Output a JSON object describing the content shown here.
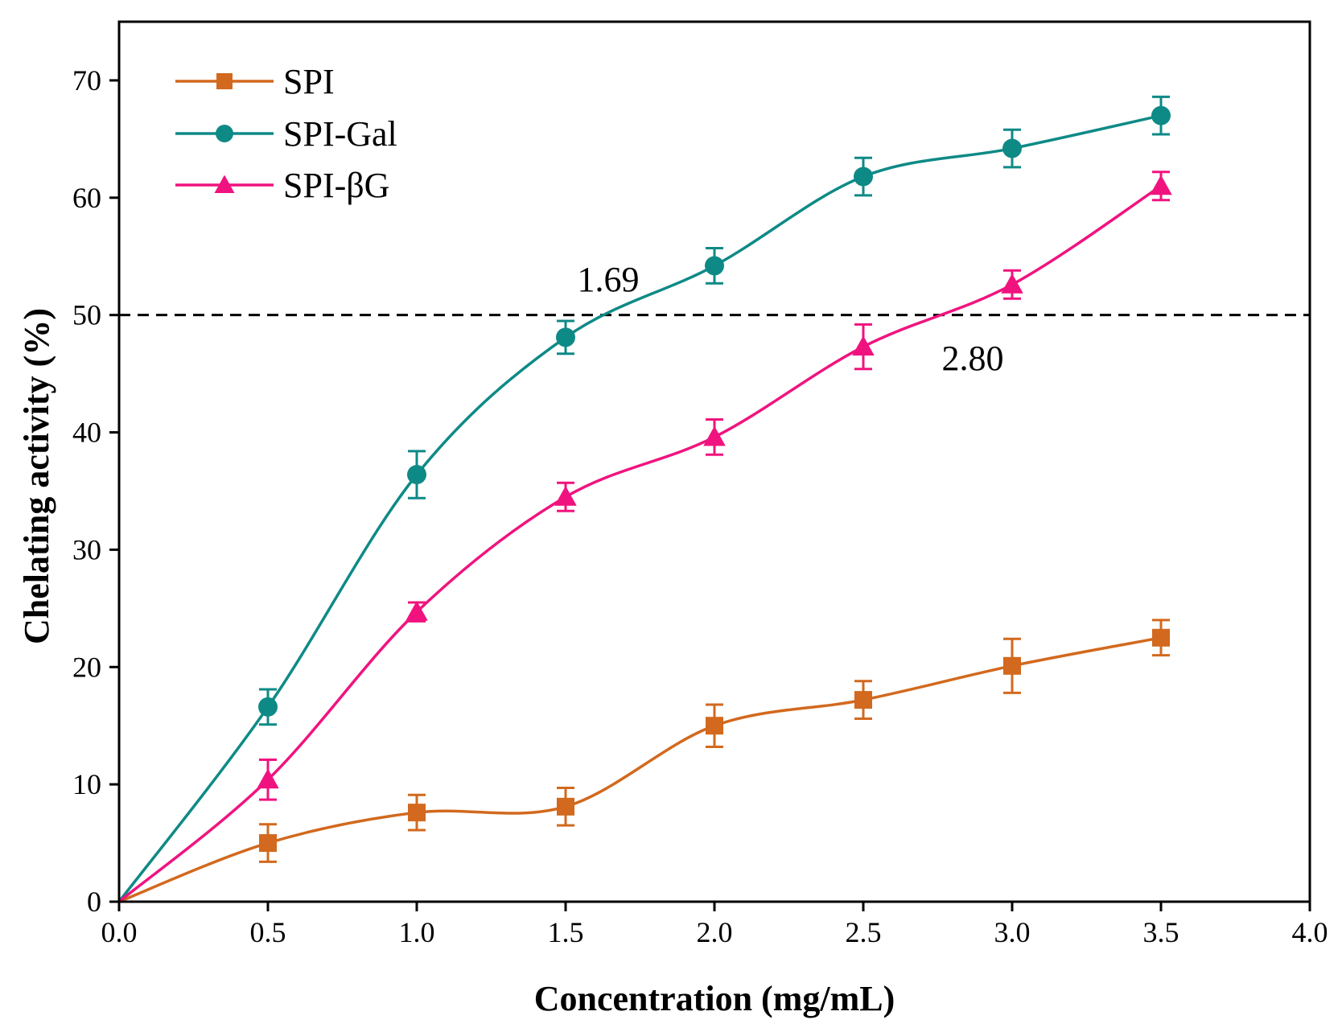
{
  "chart_data": {
    "type": "line",
    "title": "",
    "xlabel": "Concentration (mg/mL)",
    "ylabel": "Chelating activity (%)",
    "xlim": [
      0.0,
      4.0
    ],
    "ylim": [
      0,
      75
    ],
    "xticks": [
      0.0,
      0.5,
      1.0,
      1.5,
      2.0,
      2.5,
      3.0,
      3.5,
      4.0
    ],
    "xtick_labels": [
      "0.0",
      "0.5",
      "1.0",
      "1.5",
      "2.0",
      "2.5",
      "3.0",
      "3.5",
      "4.0"
    ],
    "yticks": [
      0,
      10,
      20,
      30,
      40,
      50,
      60,
      70
    ],
    "ytick_labels": [
      "0",
      "10",
      "20",
      "30",
      "40",
      "50",
      "60",
      "70"
    ],
    "grid": false,
    "legend_position": "top-left",
    "reference_line": {
      "y": 50,
      "style": "dashed"
    },
    "series": [
      {
        "name": "SPI",
        "color": "#d2691e",
        "marker": "square",
        "x": [
          0,
          0.5,
          1.0,
          1.5,
          2.0,
          2.5,
          3.0,
          3.5
        ],
        "values": [
          0,
          5.0,
          7.6,
          8.1,
          15.0,
          17.2,
          20.1,
          22.5
        ],
        "errors": [
          0,
          1.6,
          1.5,
          1.6,
          1.8,
          1.6,
          2.3,
          1.5
        ],
        "show_marker": [
          false,
          true,
          true,
          true,
          true,
          true,
          true,
          true
        ]
      },
      {
        "name": "SPI-Gal",
        "color": "#0e8a86",
        "marker": "circle",
        "x": [
          0,
          0.5,
          1.0,
          1.5,
          2.0,
          2.5,
          3.0,
          3.5
        ],
        "values": [
          0,
          16.6,
          36.4,
          48.1,
          54.2,
          61.8,
          64.2,
          67.0
        ],
        "errors": [
          0,
          1.5,
          2.0,
          1.4,
          1.5,
          1.6,
          1.6,
          1.6
        ],
        "show_marker": [
          false,
          true,
          true,
          true,
          true,
          true,
          true,
          true
        ]
      },
      {
        "name": "SPI-βG",
        "color": "#f0137f",
        "marker": "triangle",
        "x": [
          0,
          0.5,
          1.0,
          1.5,
          2.0,
          2.5,
          3.0,
          3.5
        ],
        "values": [
          0,
          10.4,
          24.7,
          34.5,
          39.6,
          47.3,
          52.6,
          61.0
        ],
        "errors": [
          0,
          1.7,
          0.8,
          1.2,
          1.5,
          1.9,
          1.2,
          1.2
        ],
        "show_marker": [
          false,
          true,
          true,
          true,
          true,
          true,
          true,
          true
        ]
      }
    ],
    "annotations": [
      {
        "text": "1.69",
        "x": 1.69,
        "y": 50,
        "position": "above-left"
      },
      {
        "text": "2.80",
        "x": 2.8,
        "y": 50,
        "position": "below-left"
      }
    ]
  }
}
